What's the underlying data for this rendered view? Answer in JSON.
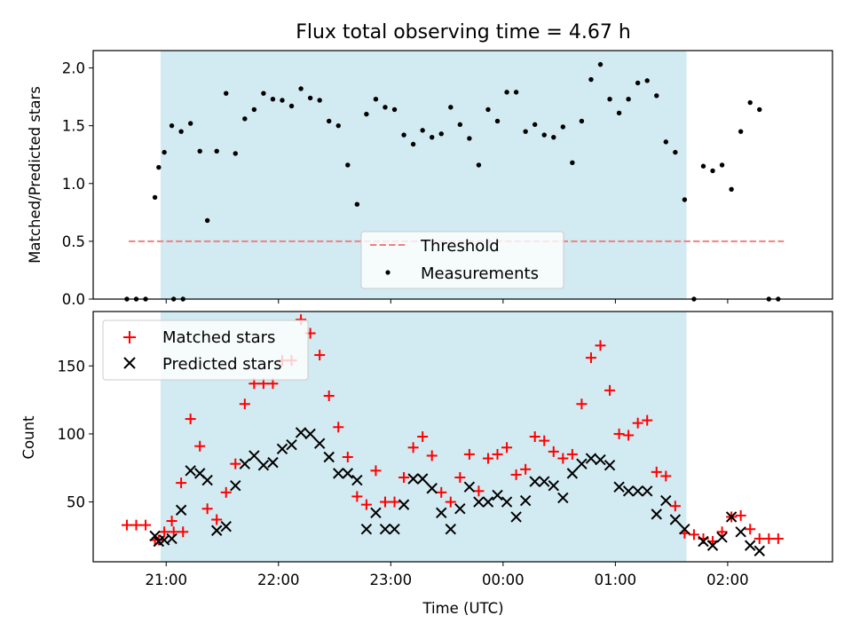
{
  "title": "Flux total observing time = 4.67 h",
  "colors": {
    "threshold": "#f08080",
    "measurements": "#000000",
    "matched": "#ff0000",
    "predicted": "#000000",
    "shade": "#add8e6"
  },
  "chart_data": [
    {
      "type": "scatter",
      "ylabel": "Matched/Predicted stars",
      "xlabel": "",
      "xlim": [
        "20:21",
        "02:56"
      ],
      "ylim": [
        0,
        2.15
      ],
      "yticks": [
        "0.0",
        "0.5",
        "1.0",
        "1.5",
        "2.0"
      ],
      "xticks": [
        "21:00",
        "22:00",
        "23:00",
        "00:00",
        "01:00",
        "02:00"
      ],
      "shaded_span": [
        "20:57",
        "01:38"
      ],
      "legend": {
        "position": "lower center",
        "entries": [
          "Threshold",
          "Measurements"
        ]
      },
      "threshold": {
        "name": "Threshold",
        "y": 0.5,
        "x": [
          "20:40",
          "02:30"
        ]
      },
      "series": [
        {
          "name": "Measurements",
          "points": [
            [
              "20:39",
              0.0
            ],
            [
              "20:44",
              0.0
            ],
            [
              "20:49",
              0.0
            ],
            [
              "20:54",
              0.88
            ],
            [
              "20:59",
              1.27
            ],
            [
              "21:04",
              0.0
            ],
            [
              "21:09",
              0.0
            ],
            [
              "20:56",
              1.14
            ],
            [
              "21:03",
              1.5
            ],
            [
              "21:08",
              1.45
            ],
            [
              "21:13",
              1.52
            ],
            [
              "21:18",
              1.28
            ],
            [
              "21:22",
              0.68
            ],
            [
              "21:27",
              1.28
            ],
            [
              "21:32",
              1.78
            ],
            [
              "21:37",
              1.26
            ],
            [
              "21:42",
              1.56
            ],
            [
              "21:47",
              1.64
            ],
            [
              "21:52",
              1.78
            ],
            [
              "21:57",
              1.73
            ],
            [
              "22:02",
              1.72
            ],
            [
              "22:07",
              1.67
            ],
            [
              "22:12",
              1.82
            ],
            [
              "22:17",
              1.74
            ],
            [
              "22:22",
              1.72
            ],
            [
              "22:27",
              1.54
            ],
            [
              "22:32",
              1.5
            ],
            [
              "22:37",
              1.16
            ],
            [
              "22:42",
              0.82
            ],
            [
              "22:47",
              1.6
            ],
            [
              "22:52",
              1.73
            ],
            [
              "22:57",
              1.66
            ],
            [
              "23:02",
              1.64
            ],
            [
              "23:07",
              1.42
            ],
            [
              "23:12",
              1.34
            ],
            [
              "23:17",
              1.46
            ],
            [
              "23:22",
              1.4
            ],
            [
              "23:27",
              1.43
            ],
            [
              "23:32",
              1.66
            ],
            [
              "23:37",
              1.51
            ],
            [
              "23:42",
              1.39
            ],
            [
              "23:47",
              1.16
            ],
            [
              "23:52",
              1.64
            ],
            [
              "23:57",
              1.54
            ],
            [
              "00:02",
              1.79
            ],
            [
              "00:07",
              1.79
            ],
            [
              "00:12",
              1.45
            ],
            [
              "00:17",
              1.51
            ],
            [
              "00:22",
              1.42
            ],
            [
              "00:27",
              1.4
            ],
            [
              "00:32",
              1.49
            ],
            [
              "00:37",
              1.18
            ],
            [
              "00:42",
              1.54
            ],
            [
              "00:47",
              1.9
            ],
            [
              "00:52",
              2.03
            ],
            [
              "00:57",
              1.73
            ],
            [
              "01:02",
              1.61
            ],
            [
              "01:07",
              1.73
            ],
            [
              "01:12",
              1.87
            ],
            [
              "01:17",
              1.89
            ],
            [
              "01:22",
              1.76
            ],
            [
              "01:27",
              1.36
            ],
            [
              "01:32",
              1.27
            ],
            [
              "01:37",
              0.86
            ],
            [
              "01:42",
              0.0
            ],
            [
              "01:47",
              1.15
            ],
            [
              "01:52",
              1.11
            ],
            [
              "01:57",
              1.16
            ],
            [
              "02:02",
              0.95
            ],
            [
              "02:07",
              1.45
            ],
            [
              "02:12",
              1.7
            ],
            [
              "02:17",
              1.64
            ],
            [
              "02:22",
              0.0
            ],
            [
              "02:27",
              0.0
            ]
          ]
        }
      ]
    },
    {
      "type": "scatter",
      "ylabel": "Count",
      "xlabel": "Time (UTC)",
      "xlim": [
        "20:21",
        "02:56"
      ],
      "ylim": [
        6,
        190
      ],
      "yticks": [
        "50",
        "100",
        "150"
      ],
      "xticks": [
        "21:00",
        "22:00",
        "23:00",
        "00:00",
        "01:00",
        "02:00"
      ],
      "shaded_span": [
        "20:57",
        "01:38"
      ],
      "legend": {
        "position": "upper left",
        "entries": [
          "Matched stars",
          "Predicted stars"
        ]
      },
      "series": [
        {
          "name": "Matched stars",
          "marker": "plus",
          "points": [
            [
              "20:39",
              33
            ],
            [
              "20:44",
              33
            ],
            [
              "20:49",
              33
            ],
            [
              "20:54",
              22
            ],
            [
              "20:59",
              28
            ],
            [
              "21:04",
              28
            ],
            [
              "21:09",
              28
            ],
            [
              "20:56",
              22
            ],
            [
              "21:03",
              36
            ],
            [
              "21:08",
              64
            ],
            [
              "21:13",
              111
            ],
            [
              "21:18",
              91
            ],
            [
              "21:22",
              45
            ],
            [
              "21:27",
              37
            ],
            [
              "21:32",
              57
            ],
            [
              "21:37",
              78
            ],
            [
              "21:42",
              122
            ],
            [
              "21:47",
              137
            ],
            [
              "21:52",
              137
            ],
            [
              "21:57",
              137
            ],
            [
              "22:02",
              154
            ],
            [
              "22:07",
              154
            ],
            [
              "22:12",
              184
            ],
            [
              "22:17",
              174
            ],
            [
              "22:22",
              158
            ],
            [
              "22:27",
              128
            ],
            [
              "22:32",
              105
            ],
            [
              "22:37",
              83
            ],
            [
              "22:42",
              54
            ],
            [
              "22:47",
              48
            ],
            [
              "22:52",
              73
            ],
            [
              "22:57",
              50
            ],
            [
              "23:02",
              50
            ],
            [
              "23:07",
              68
            ],
            [
              "23:12",
              90
            ],
            [
              "23:17",
              98
            ],
            [
              "23:22",
              84
            ],
            [
              "23:27",
              57
            ],
            [
              "23:32",
              50
            ],
            [
              "23:37",
              68
            ],
            [
              "23:42",
              85
            ],
            [
              "23:47",
              58
            ],
            [
              "23:52",
              82
            ],
            [
              "23:57",
              85
            ],
            [
              "00:02",
              90
            ],
            [
              "00:07",
              70
            ],
            [
              "00:12",
              74
            ],
            [
              "00:17",
              98
            ],
            [
              "00:22",
              95
            ],
            [
              "00:27",
              87
            ],
            [
              "00:32",
              82
            ],
            [
              "00:37",
              85
            ],
            [
              "00:42",
              122
            ],
            [
              "00:47",
              156
            ],
            [
              "00:52",
              165
            ],
            [
              "00:57",
              132
            ],
            [
              "01:02",
              100
            ],
            [
              "01:07",
              99
            ],
            [
              "01:12",
              108
            ],
            [
              "01:17",
              110
            ],
            [
              "01:22",
              72
            ],
            [
              "01:27",
              69
            ],
            [
              "01:32",
              47
            ],
            [
              "01:37",
              27
            ],
            [
              "01:42",
              26
            ],
            [
              "01:47",
              23
            ],
            [
              "01:52",
              21
            ],
            [
              "01:57",
              28
            ],
            [
              "02:02",
              39
            ],
            [
              "02:07",
              40
            ],
            [
              "02:12",
              30
            ],
            [
              "02:17",
              23
            ],
            [
              "02:22",
              23
            ],
            [
              "02:27",
              23
            ]
          ]
        },
        {
          "name": "Predicted stars",
          "marker": "x",
          "points": [
            [
              "20:54",
              25
            ],
            [
              "20:59",
              22
            ],
            [
              "20:56",
              21
            ],
            [
              "21:03",
              23
            ],
            [
              "21:08",
              44
            ],
            [
              "21:13",
              73
            ],
            [
              "21:18",
              71
            ],
            [
              "21:22",
              66
            ],
            [
              "21:27",
              29
            ],
            [
              "21:32",
              32
            ],
            [
              "21:37",
              62
            ],
            [
              "21:42",
              78
            ],
            [
              "21:47",
              84
            ],
            [
              "21:52",
              77
            ],
            [
              "21:57",
              79
            ],
            [
              "22:02",
              89
            ],
            [
              "22:07",
              92
            ],
            [
              "22:12",
              101
            ],
            [
              "22:17",
              100
            ],
            [
              "22:22",
              93
            ],
            [
              "22:27",
              83
            ],
            [
              "22:32",
              71
            ],
            [
              "22:37",
              71
            ],
            [
              "22:42",
              66
            ],
            [
              "22:47",
              30
            ],
            [
              "22:52",
              42
            ],
            [
              "22:57",
              30
            ],
            [
              "23:02",
              30
            ],
            [
              "23:07",
              48
            ],
            [
              "23:12",
              67
            ],
            [
              "23:17",
              67
            ],
            [
              "23:22",
              60
            ],
            [
              "23:27",
              42
            ],
            [
              "23:32",
              30
            ],
            [
              "23:37",
              45
            ],
            [
              "23:42",
              61
            ],
            [
              "23:47",
              50
            ],
            [
              "23:52",
              50
            ],
            [
              "23:57",
              55
            ],
            [
              "00:02",
              50
            ],
            [
              "00:07",
              39
            ],
            [
              "00:12",
              51
            ],
            [
              "00:17",
              65
            ],
            [
              "00:22",
              65
            ],
            [
              "00:27",
              62
            ],
            [
              "00:32",
              53
            ],
            [
              "00:37",
              71
            ],
            [
              "00:42",
              78
            ],
            [
              "00:47",
              82
            ],
            [
              "00:52",
              81
            ],
            [
              "00:57",
              77
            ],
            [
              "01:02",
              61
            ],
            [
              "01:07",
              58
            ],
            [
              "01:12",
              58
            ],
            [
              "01:17",
              58
            ],
            [
              "01:22",
              41
            ],
            [
              "01:27",
              51
            ],
            [
              "01:32",
              37
            ],
            [
              "01:37",
              30
            ],
            [
              "01:47",
              21
            ],
            [
              "01:52",
              18
            ],
            [
              "01:57",
              24
            ],
            [
              "02:02",
              39
            ],
            [
              "02:07",
              28
            ],
            [
              "02:12",
              18
            ],
            [
              "02:17",
              14
            ]
          ]
        }
      ]
    }
  ]
}
